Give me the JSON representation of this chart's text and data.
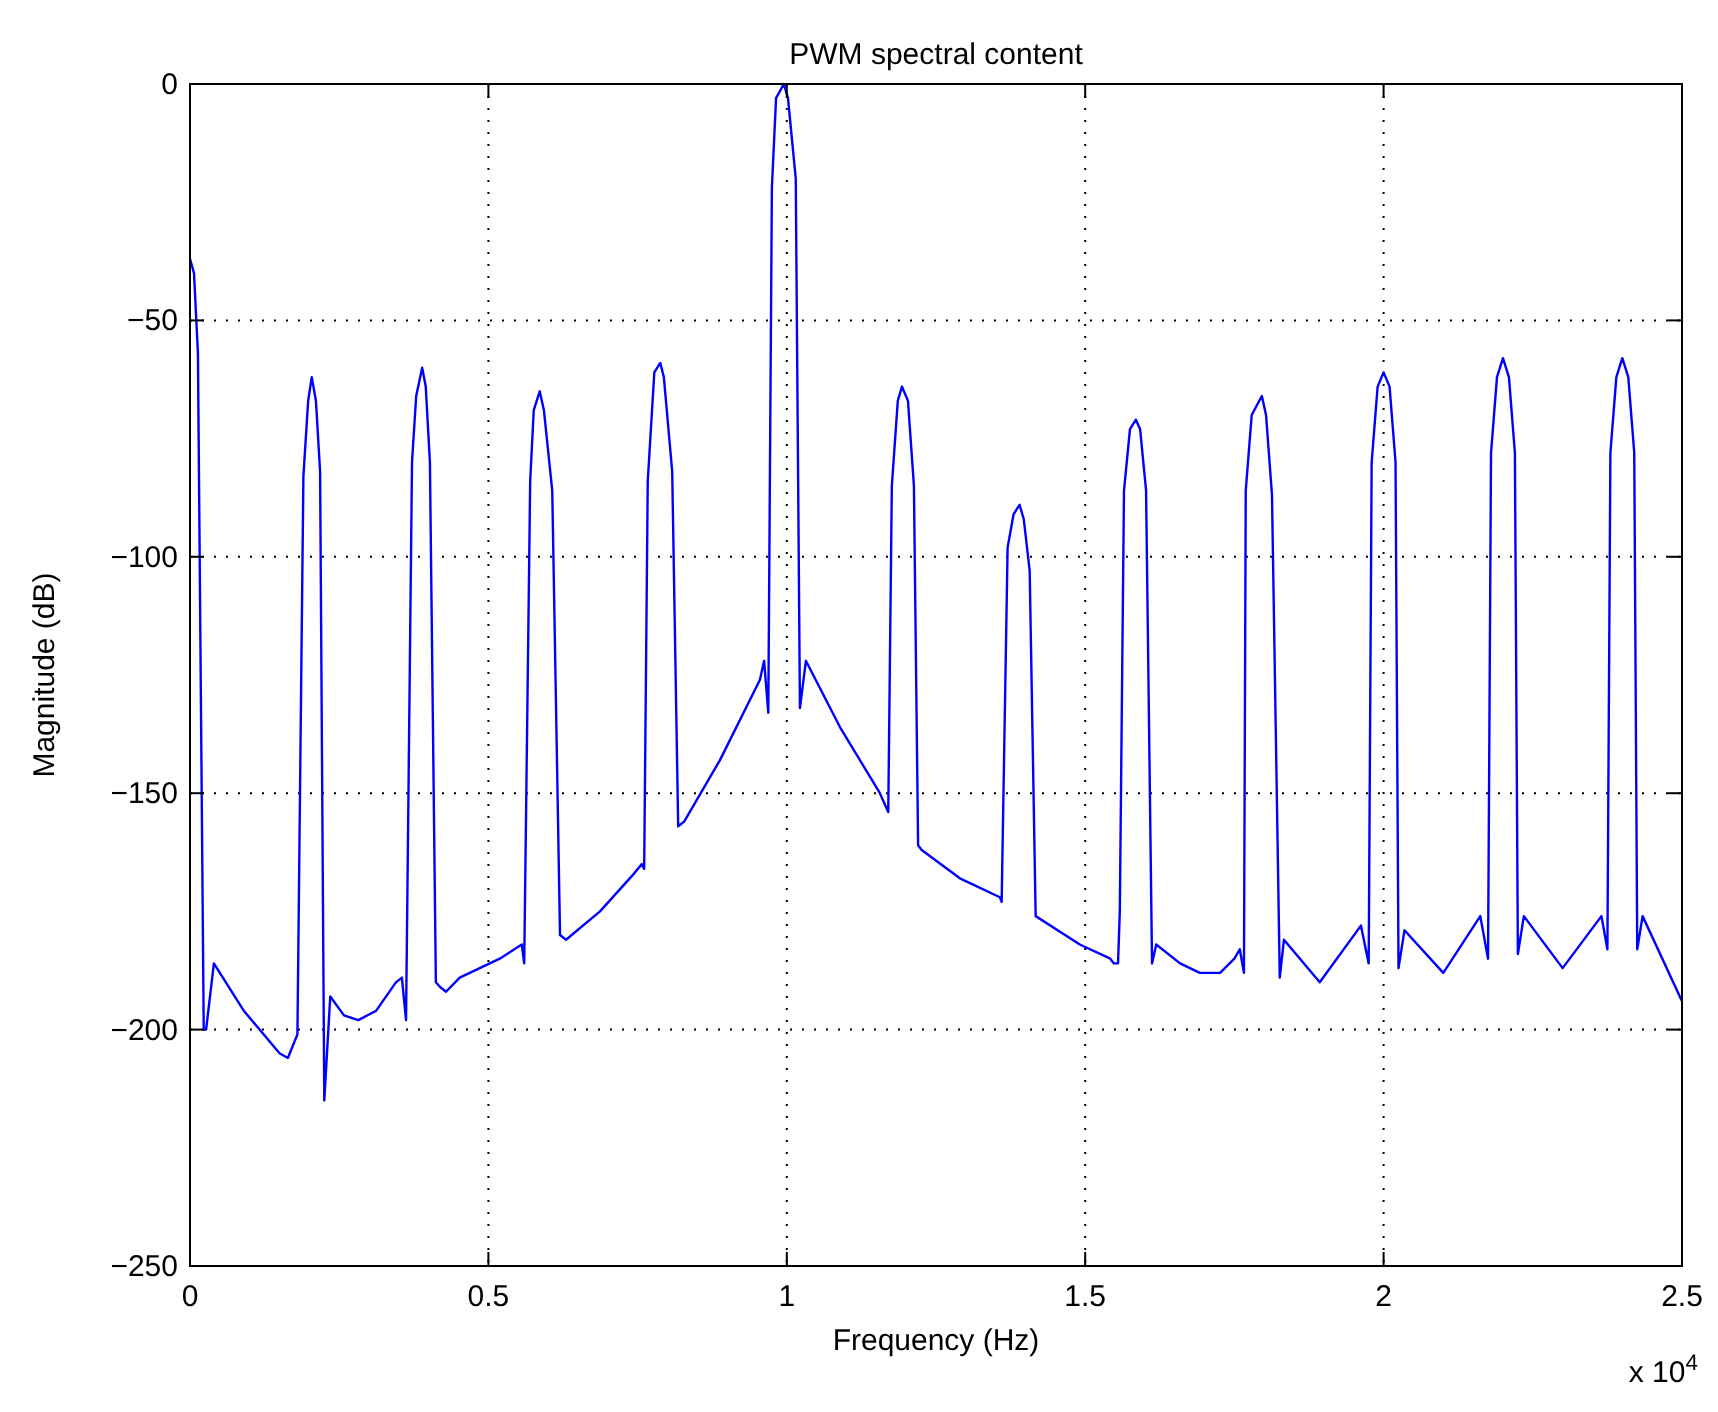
{
  "chart_data": {
    "type": "line",
    "title": "PWM spectral content",
    "xlabel": "Frequency (Hz)",
    "ylabel": "Magnitude (dB)",
    "annotations": [
      "x 10$^{4}$"
    ],
    "xlim": [
      0,
      2.5
    ],
    "ylim": [
      -250,
      0
    ],
    "xticks": [
      0,
      0.5,
      1,
      1.5,
      2,
      2.5
    ],
    "yticks": [
      -250,
      -200,
      -150,
      -100,
      -50,
      0
    ],
    "grid": true,
    "series": [
      {
        "color": "#0000ff",
        "x": [
          0,
          0.0067,
          0.0133,
          0.023,
          0.027,
          0.04,
          0.09,
          0.15,
          0.164,
          0.18,
          0.19,
          0.198,
          0.204,
          0.211,
          0.218,
          0.225,
          0.235,
          0.258,
          0.282,
          0.312,
          0.345,
          0.355,
          0.362,
          0.372,
          0.379,
          0.389,
          0.395,
          0.402,
          0.412,
          0.419,
          0.429,
          0.452,
          0.519,
          0.556,
          0.56,
          0.57,
          0.576,
          0.586,
          0.593,
          0.607,
          0.62,
          0.63,
          0.687,
          0.744,
          0.757,
          0.761,
          0.767,
          0.778,
          0.788,
          0.794,
          0.808,
          0.818,
          0.828,
          0.888,
          0.955,
          0.962,
          0.969,
          0.975,
          0.982,
          0.995,
          1.002,
          1.015,
          1.022,
          1.032,
          1.089,
          1.156,
          1.17,
          1.176,
          1.186,
          1.193,
          1.203,
          1.213,
          1.22,
          1.226,
          1.29,
          1.357,
          1.36,
          1.37,
          1.38,
          1.39,
          1.397,
          1.407,
          1.417,
          1.491,
          1.542,
          1.548,
          1.555,
          1.558,
          1.565,
          1.575,
          1.585,
          1.592,
          1.602,
          1.612,
          1.619,
          1.659,
          1.692,
          1.726,
          1.75,
          1.759,
          1.766,
          1.769,
          1.779,
          1.796,
          1.803,
          1.813,
          1.826,
          1.833,
          1.893,
          1.962,
          1.975,
          1.98,
          1.99,
          2,
          2.01,
          2.02,
          2.025,
          2.035,
          2.1,
          2.162,
          2.175,
          2.18,
          2.19,
          2.2,
          2.21,
          2.22,
          2.225,
          2.235,
          2.3,
          2.365,
          2.375,
          2.38,
          2.39,
          2.4,
          2.41,
          2.42,
          2.425,
          2.434,
          2.5
        ],
        "values": [
          -37,
          -40,
          -57,
          -200,
          -200,
          -186,
          -196,
          -205,
          -206,
          -201,
          -83,
          -67,
          -62,
          -67,
          -82,
          -215,
          -193,
          -197,
          -198,
          -196,
          -190,
          -189,
          -198,
          -80,
          -66,
          -60,
          -64,
          -80,
          -190,
          -191,
          -192,
          -189,
          -185,
          -182,
          -186,
          -84,
          -69,
          -65,
          -69,
          -86,
          -180,
          -181,
          -175,
          -167,
          -165,
          -166,
          -84,
          -61,
          -59,
          -62,
          -82,
          -157,
          -156,
          -143,
          -126,
          -122,
          -133,
          -22,
          -3,
          0,
          -3,
          -20,
          -132,
          -122,
          -136,
          -150,
          -154,
          -85,
          -67,
          -64,
          -67,
          -85,
          -161,
          -162,
          -168,
          -172,
          -173,
          -98,
          -91,
          -89,
          -92,
          -103,
          -176,
          -182,
          -185,
          -186,
          -186,
          -175,
          -86,
          -73,
          -71,
          -73,
          -86,
          -186,
          -182,
          -186,
          -188,
          -188,
          -185,
          -183,
          -188,
          -86,
          -70,
          -66,
          -70,
          -87,
          -189,
          -181,
          -190,
          -178,
          -186,
          -80,
          -64,
          -61,
          -64,
          -80,
          -187,
          -179,
          -188,
          -176,
          -185,
          -78,
          -62,
          -58,
          -62,
          -78,
          -184,
          -176,
          -187,
          -176,
          -183,
          -78,
          -62,
          -58,
          -62,
          -78,
          -183,
          -176,
          -194
        ]
      }
    ]
  }
}
